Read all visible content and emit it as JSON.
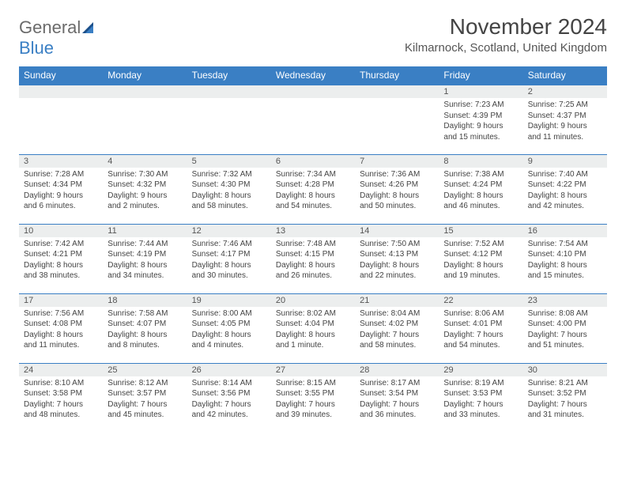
{
  "logo": {
    "text_general": "General",
    "text_blue": "Blue"
  },
  "title": "November 2024",
  "subtitle": "Kilmarnock, Scotland, United Kingdom",
  "day_headers": [
    "Sunday",
    "Monday",
    "Tuesday",
    "Wednesday",
    "Thursday",
    "Friday",
    "Saturday"
  ],
  "colors": {
    "header_bg": "#3a7fc4",
    "header_text": "#ffffff",
    "daynum_bg": "#eceeee",
    "border": "#3a7fc4",
    "body_text": "#444444",
    "logo_gray": "#6b6b6b",
    "logo_blue": "#3a7fc4"
  },
  "weeks": [
    [
      {
        "n": "",
        "sunrise": "",
        "sunset": "",
        "daylight": ""
      },
      {
        "n": "",
        "sunrise": "",
        "sunset": "",
        "daylight": ""
      },
      {
        "n": "",
        "sunrise": "",
        "sunset": "",
        "daylight": ""
      },
      {
        "n": "",
        "sunrise": "",
        "sunset": "",
        "daylight": ""
      },
      {
        "n": "",
        "sunrise": "",
        "sunset": "",
        "daylight": ""
      },
      {
        "n": "1",
        "sunrise": "Sunrise: 7:23 AM",
        "sunset": "Sunset: 4:39 PM",
        "daylight": "Daylight: 9 hours and 15 minutes."
      },
      {
        "n": "2",
        "sunrise": "Sunrise: 7:25 AM",
        "sunset": "Sunset: 4:37 PM",
        "daylight": "Daylight: 9 hours and 11 minutes."
      }
    ],
    [
      {
        "n": "3",
        "sunrise": "Sunrise: 7:28 AM",
        "sunset": "Sunset: 4:34 PM",
        "daylight": "Daylight: 9 hours and 6 minutes."
      },
      {
        "n": "4",
        "sunrise": "Sunrise: 7:30 AM",
        "sunset": "Sunset: 4:32 PM",
        "daylight": "Daylight: 9 hours and 2 minutes."
      },
      {
        "n": "5",
        "sunrise": "Sunrise: 7:32 AM",
        "sunset": "Sunset: 4:30 PM",
        "daylight": "Daylight: 8 hours and 58 minutes."
      },
      {
        "n": "6",
        "sunrise": "Sunrise: 7:34 AM",
        "sunset": "Sunset: 4:28 PM",
        "daylight": "Daylight: 8 hours and 54 minutes."
      },
      {
        "n": "7",
        "sunrise": "Sunrise: 7:36 AM",
        "sunset": "Sunset: 4:26 PM",
        "daylight": "Daylight: 8 hours and 50 minutes."
      },
      {
        "n": "8",
        "sunrise": "Sunrise: 7:38 AM",
        "sunset": "Sunset: 4:24 PM",
        "daylight": "Daylight: 8 hours and 46 minutes."
      },
      {
        "n": "9",
        "sunrise": "Sunrise: 7:40 AM",
        "sunset": "Sunset: 4:22 PM",
        "daylight": "Daylight: 8 hours and 42 minutes."
      }
    ],
    [
      {
        "n": "10",
        "sunrise": "Sunrise: 7:42 AM",
        "sunset": "Sunset: 4:21 PM",
        "daylight": "Daylight: 8 hours and 38 minutes."
      },
      {
        "n": "11",
        "sunrise": "Sunrise: 7:44 AM",
        "sunset": "Sunset: 4:19 PM",
        "daylight": "Daylight: 8 hours and 34 minutes."
      },
      {
        "n": "12",
        "sunrise": "Sunrise: 7:46 AM",
        "sunset": "Sunset: 4:17 PM",
        "daylight": "Daylight: 8 hours and 30 minutes."
      },
      {
        "n": "13",
        "sunrise": "Sunrise: 7:48 AM",
        "sunset": "Sunset: 4:15 PM",
        "daylight": "Daylight: 8 hours and 26 minutes."
      },
      {
        "n": "14",
        "sunrise": "Sunrise: 7:50 AM",
        "sunset": "Sunset: 4:13 PM",
        "daylight": "Daylight: 8 hours and 22 minutes."
      },
      {
        "n": "15",
        "sunrise": "Sunrise: 7:52 AM",
        "sunset": "Sunset: 4:12 PM",
        "daylight": "Daylight: 8 hours and 19 minutes."
      },
      {
        "n": "16",
        "sunrise": "Sunrise: 7:54 AM",
        "sunset": "Sunset: 4:10 PM",
        "daylight": "Daylight: 8 hours and 15 minutes."
      }
    ],
    [
      {
        "n": "17",
        "sunrise": "Sunrise: 7:56 AM",
        "sunset": "Sunset: 4:08 PM",
        "daylight": "Daylight: 8 hours and 11 minutes."
      },
      {
        "n": "18",
        "sunrise": "Sunrise: 7:58 AM",
        "sunset": "Sunset: 4:07 PM",
        "daylight": "Daylight: 8 hours and 8 minutes."
      },
      {
        "n": "19",
        "sunrise": "Sunrise: 8:00 AM",
        "sunset": "Sunset: 4:05 PM",
        "daylight": "Daylight: 8 hours and 4 minutes."
      },
      {
        "n": "20",
        "sunrise": "Sunrise: 8:02 AM",
        "sunset": "Sunset: 4:04 PM",
        "daylight": "Daylight: 8 hours and 1 minute."
      },
      {
        "n": "21",
        "sunrise": "Sunrise: 8:04 AM",
        "sunset": "Sunset: 4:02 PM",
        "daylight": "Daylight: 7 hours and 58 minutes."
      },
      {
        "n": "22",
        "sunrise": "Sunrise: 8:06 AM",
        "sunset": "Sunset: 4:01 PM",
        "daylight": "Daylight: 7 hours and 54 minutes."
      },
      {
        "n": "23",
        "sunrise": "Sunrise: 8:08 AM",
        "sunset": "Sunset: 4:00 PM",
        "daylight": "Daylight: 7 hours and 51 minutes."
      }
    ],
    [
      {
        "n": "24",
        "sunrise": "Sunrise: 8:10 AM",
        "sunset": "Sunset: 3:58 PM",
        "daylight": "Daylight: 7 hours and 48 minutes."
      },
      {
        "n": "25",
        "sunrise": "Sunrise: 8:12 AM",
        "sunset": "Sunset: 3:57 PM",
        "daylight": "Daylight: 7 hours and 45 minutes."
      },
      {
        "n": "26",
        "sunrise": "Sunrise: 8:14 AM",
        "sunset": "Sunset: 3:56 PM",
        "daylight": "Daylight: 7 hours and 42 minutes."
      },
      {
        "n": "27",
        "sunrise": "Sunrise: 8:15 AM",
        "sunset": "Sunset: 3:55 PM",
        "daylight": "Daylight: 7 hours and 39 minutes."
      },
      {
        "n": "28",
        "sunrise": "Sunrise: 8:17 AM",
        "sunset": "Sunset: 3:54 PM",
        "daylight": "Daylight: 7 hours and 36 minutes."
      },
      {
        "n": "29",
        "sunrise": "Sunrise: 8:19 AM",
        "sunset": "Sunset: 3:53 PM",
        "daylight": "Daylight: 7 hours and 33 minutes."
      },
      {
        "n": "30",
        "sunrise": "Sunrise: 8:21 AM",
        "sunset": "Sunset: 3:52 PM",
        "daylight": "Daylight: 7 hours and 31 minutes."
      }
    ]
  ]
}
